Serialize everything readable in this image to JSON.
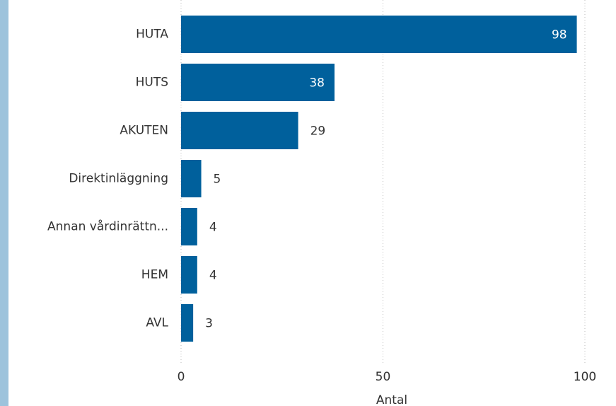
{
  "chart_data": {
    "type": "bar",
    "orientation": "horizontal",
    "categories": [
      "HUTA",
      "HUTS",
      "AKUTEN",
      "Direktinläggning",
      "Annan vårdinrättn...",
      "HEM",
      "AVL"
    ],
    "values": [
      98,
      38,
      29,
      5,
      4,
      4,
      3
    ],
    "color": "#00609c",
    "xlabel": "Antal",
    "xlim": [
      0,
      100
    ],
    "xticks": [
      0,
      50,
      100
    ],
    "grid": true
  }
}
